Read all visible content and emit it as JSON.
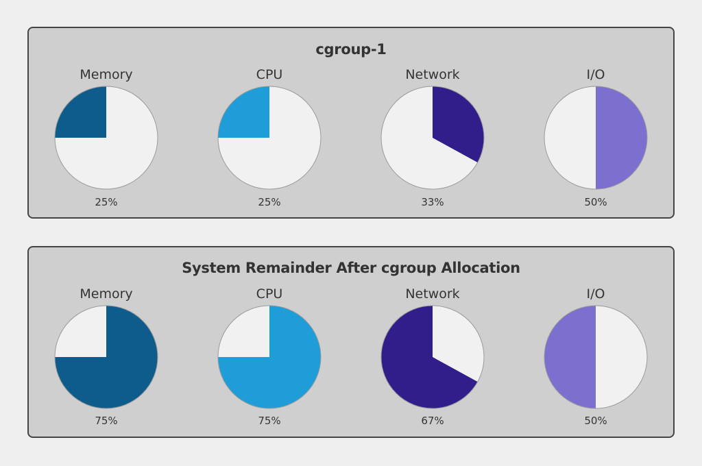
{
  "chart_data": [
    {
      "type": "pie",
      "title": "cgroup-1",
      "pies": [
        {
          "label": "Memory",
          "value": 25,
          "value_label": "25%",
          "color": "#0e5c8c",
          "direction": "counterclockwise"
        },
        {
          "label": "CPU",
          "value": 25,
          "value_label": "25%",
          "color": "#1e9dd8",
          "direction": "counterclockwise"
        },
        {
          "label": "Network",
          "value": 33,
          "value_label": "33%",
          "color": "#321e8a",
          "direction": "clockwise"
        },
        {
          "label": "I/O",
          "value": 50,
          "value_label": "50%",
          "color": "#7b6fd0",
          "direction": "clockwise"
        }
      ]
    },
    {
      "type": "pie",
      "title": "System Remainder After cgroup Allocation",
      "pies": [
        {
          "label": "Memory",
          "value": 75,
          "value_label": "75%",
          "color": "#0e5c8c",
          "direction": "clockwise"
        },
        {
          "label": "CPU",
          "value": 75,
          "value_label": "75%",
          "color": "#1e9dd8",
          "direction": "clockwise"
        },
        {
          "label": "Network",
          "value": 67,
          "value_label": "67%",
          "color": "#321e8a",
          "direction": "counterclockwise"
        },
        {
          "label": "I/O",
          "value": 50,
          "value_label": "50%",
          "color": "#7b6fd0",
          "direction": "counterclockwise"
        }
      ]
    }
  ],
  "colors": {
    "background": "#efefef",
    "panel": "#cfcfcf",
    "pie_remainder": "#f1f1f1"
  }
}
